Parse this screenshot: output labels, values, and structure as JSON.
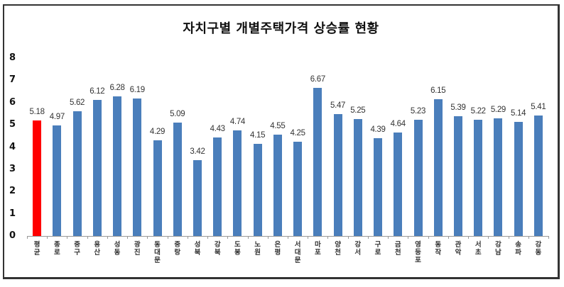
{
  "chart_data": {
    "type": "bar",
    "title": "자치구별 개별주택가격 상승률 현황",
    "xlabel": "",
    "ylabel": "",
    "ylim": [
      0,
      8
    ],
    "yticks": [
      0,
      1,
      2,
      3,
      4,
      5,
      6,
      7,
      8
    ],
    "grid": false,
    "legend": null,
    "categories": [
      "평균",
      "종로",
      "중구",
      "용산",
      "성동",
      "광진",
      "동대문",
      "중랑",
      "성북",
      "강북",
      "도봉",
      "노원",
      "은평",
      "서대문",
      "마포",
      "양천",
      "강서",
      "구로",
      "금천",
      "영등포",
      "동작",
      "관악",
      "서초",
      "강남",
      "송파",
      "강동"
    ],
    "values": [
      5.18,
      4.97,
      5.62,
      6.12,
      6.28,
      6.19,
      4.29,
      5.09,
      3.42,
      4.43,
      4.74,
      4.15,
      4.55,
      4.25,
      6.67,
      5.47,
      5.25,
      4.39,
      4.64,
      5.23,
      6.15,
      5.39,
      5.22,
      5.29,
      5.14,
      5.41
    ],
    "value_labels": [
      "5.18",
      "4.97",
      "5.62",
      "6.12",
      "6.28",
      "6.19",
      "4.29",
      "5.09",
      "3.42",
      "4.43",
      "4.74",
      "4.15",
      "4.55",
      "4.25",
      "6.67",
      "5.47",
      "5.25",
      "4.39",
      "4.64",
      "5.23",
      "6.15",
      "5.39",
      "5.22",
      "5.29",
      "5.14",
      "5.41"
    ],
    "highlight_index": 0,
    "colors": {
      "highlight": "#ff0000",
      "bar": "#4a7ebb",
      "axis": "#999999"
    }
  }
}
